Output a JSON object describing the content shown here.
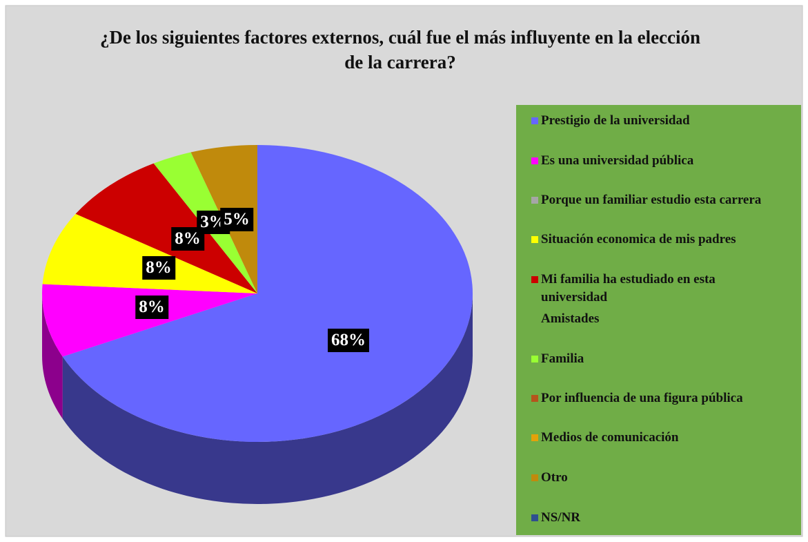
{
  "chart_data": {
    "type": "pie",
    "title": "¿De los siguientes factores externos, cuál fue el más influyente en la elección de la carrera?",
    "categories": [
      "Prestigio de la universidad",
      "Es una universidad pública",
      "Porque un familiar estudio esta carrera",
      "Situación economica de mis padres",
      "Mi familia ha estudiado en esta universidad",
      "Amistades",
      "Familia",
      "Por influencia de una figura pública",
      "Medios de comunicación",
      "Otro",
      "NS/NR"
    ],
    "values": [
      68,
      8,
      0,
      8,
      8,
      0,
      3,
      0,
      0,
      5,
      0
    ],
    "value_labels": [
      "68%",
      "8%",
      null,
      "8%",
      "8%",
      null,
      "3%",
      null,
      null,
      "5%",
      null
    ],
    "colors": [
      "#6666ff",
      "#ff00ff",
      "#a6a6a6",
      "#ffff00",
      "#cc0000",
      null,
      "#99ff33",
      "#b5541c",
      "#e3a20a",
      "#c08a0c",
      "#2f4f8f"
    ],
    "legend": "right"
  }
}
